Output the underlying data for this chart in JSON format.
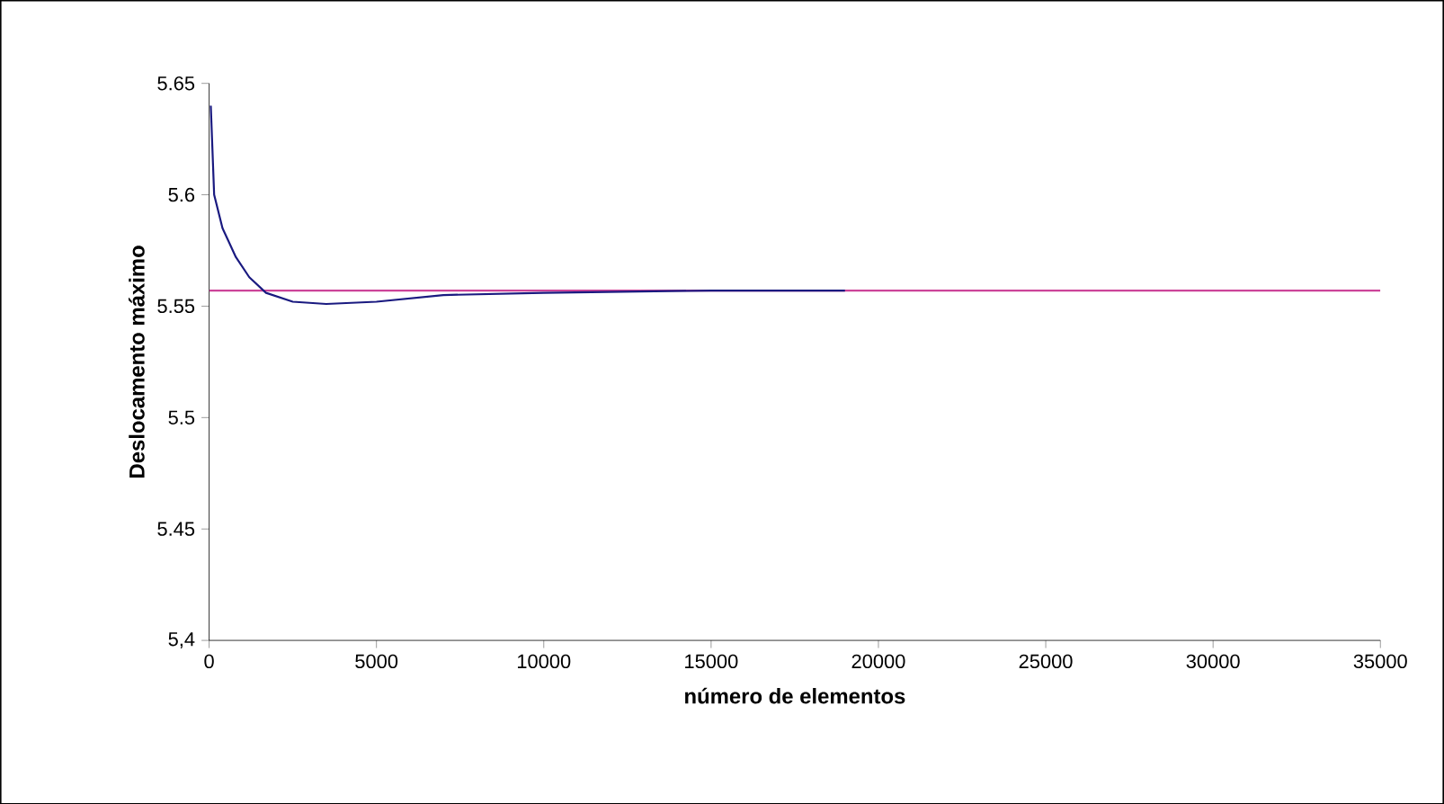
{
  "chart_data": {
    "type": "line",
    "xlabel": "número de elementos",
    "ylabel": "Deslocamento máximo",
    "xlim": [
      0,
      35000
    ],
    "xticks": [
      0,
      5000,
      10000,
      15000,
      20000,
      25000,
      30000,
      35000
    ],
    "ylim": [
      5.4,
      5.65
    ],
    "yticks": [
      {
        "value": 5.4,
        "label": "5,4"
      },
      {
        "value": 5.45,
        "label": "5.45"
      },
      {
        "value": 5.5,
        "label": "5.5"
      },
      {
        "value": 5.55,
        "label": "5.55"
      },
      {
        "value": 5.6,
        "label": "5.6"
      },
      {
        "value": 5.65,
        "label": "5.65"
      }
    ],
    "grid": false,
    "marker": "none",
    "line_style": "solid",
    "series": [
      {
        "color": "#cc4499",
        "x": [
          0,
          35000
        ],
        "values": [
          5.557,
          5.557
        ]
      },
      {
        "color": "#1a1a80",
        "x": [
          50,
          150,
          400,
          800,
          1200,
          1700,
          2500,
          3500,
          5000,
          7000,
          10000,
          15000,
          19000
        ],
        "values": [
          5.64,
          5.6,
          5.585,
          5.572,
          5.563,
          5.556,
          5.552,
          5.551,
          5.552,
          5.555,
          5.556,
          5.557,
          5.557
        ]
      }
    ]
  }
}
